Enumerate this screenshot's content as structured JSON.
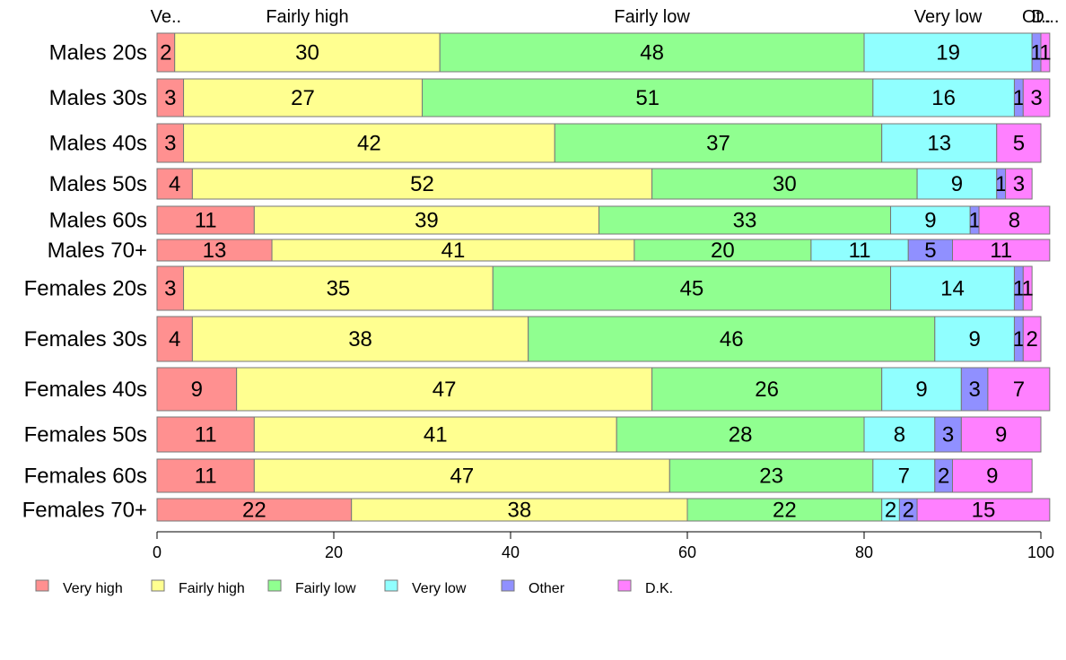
{
  "chart_data": {
    "type": "bar",
    "orientation": "horizontal",
    "stacked": true,
    "categories": [
      "Males 20s",
      "Males 30s",
      "Males 40s",
      "Males 50s",
      "Males 60s",
      "Males 70+",
      "Females 20s",
      "Females 30s",
      "Females 40s",
      "Females 50s",
      "Females 60s",
      "Females 70+"
    ],
    "series": [
      {
        "name": "Very high",
        "color": "#ff9090",
        "values": [
          2,
          3,
          3,
          4,
          11,
          13,
          3,
          4,
          9,
          11,
          11,
          22
        ]
      },
      {
        "name": "Fairly high",
        "color": "#ffff90",
        "values": [
          30,
          27,
          42,
          52,
          39,
          41,
          35,
          38,
          47,
          41,
          47,
          38
        ]
      },
      {
        "name": "Fairly low",
        "color": "#90ff90",
        "values": [
          48,
          51,
          37,
          30,
          33,
          20,
          45,
          46,
          26,
          28,
          23,
          22
        ]
      },
      {
        "name": "Very low",
        "color": "#90ffff",
        "values": [
          19,
          16,
          13,
          9,
          9,
          11,
          14,
          9,
          9,
          8,
          7,
          2
        ]
      },
      {
        "name": "Other",
        "color": "#9090ff",
        "values": [
          1,
          1,
          0,
          1,
          1,
          5,
          1,
          1,
          3,
          3,
          2,
          2
        ]
      },
      {
        "name": "D.K.",
        "color": "#ff80ff",
        "values": [
          1,
          3,
          5,
          3,
          8,
          11,
          1,
          2,
          7,
          9,
          9,
          15
        ]
      }
    ],
    "top_labels": [
      "Ve..",
      "Fairly high",
      "Fairly low",
      "Very low",
      "Ot..",
      "D..."
    ],
    "x_ticks": [
      "0",
      "20",
      "40",
      "60",
      "80",
      "100"
    ],
    "xlim": [
      0,
      100
    ],
    "grid": false,
    "legend_position": "bottom-left",
    "title": "",
    "xlabel": "",
    "ylabel": ""
  }
}
